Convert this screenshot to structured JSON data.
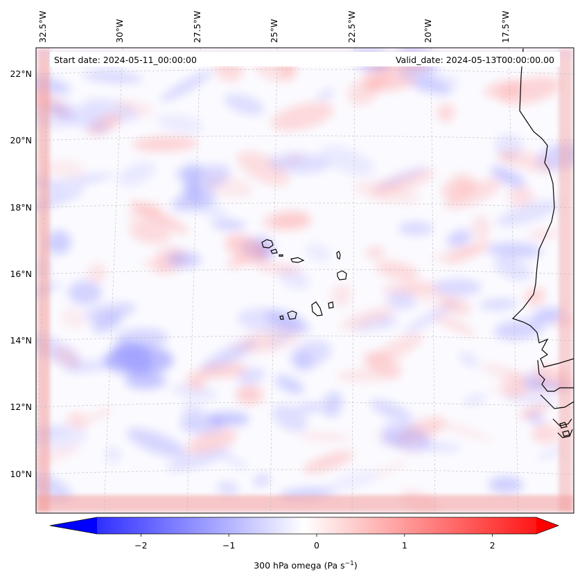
{
  "header": {
    "start_date": "Start date: 2024-05-11_00:00:00",
    "valid_date": "Valid_date: 2024-05-13T00:00:00.00"
  },
  "longitude_labels": [
    "32.5°W",
    "30°W",
    "27.5°W",
    "25°W",
    "22.5°W",
    "20°W",
    "17.5°W"
  ],
  "latitude_labels": [
    "22°N",
    "20°N",
    "18°N",
    "16°N",
    "14°N",
    "12°N",
    "10°N"
  ],
  "colorbar": {
    "ticks": [
      "−2",
      "−1",
      "0",
      "1",
      "2"
    ],
    "tick_values": [
      -2,
      -1,
      0,
      1,
      2
    ],
    "range": [
      -2.5,
      2.5
    ],
    "label_main": "300 hPa omega (Pa s",
    "label_sup": "−1",
    "label_end": ")",
    "colormap": "bwr",
    "color_low": "#0000ff",
    "color_mid": "#ffffff",
    "color_high": "#ff0000"
  },
  "map": {
    "field": "omega",
    "coastline_color": "#000000",
    "gridline_color": "#bbbbbb"
  }
}
